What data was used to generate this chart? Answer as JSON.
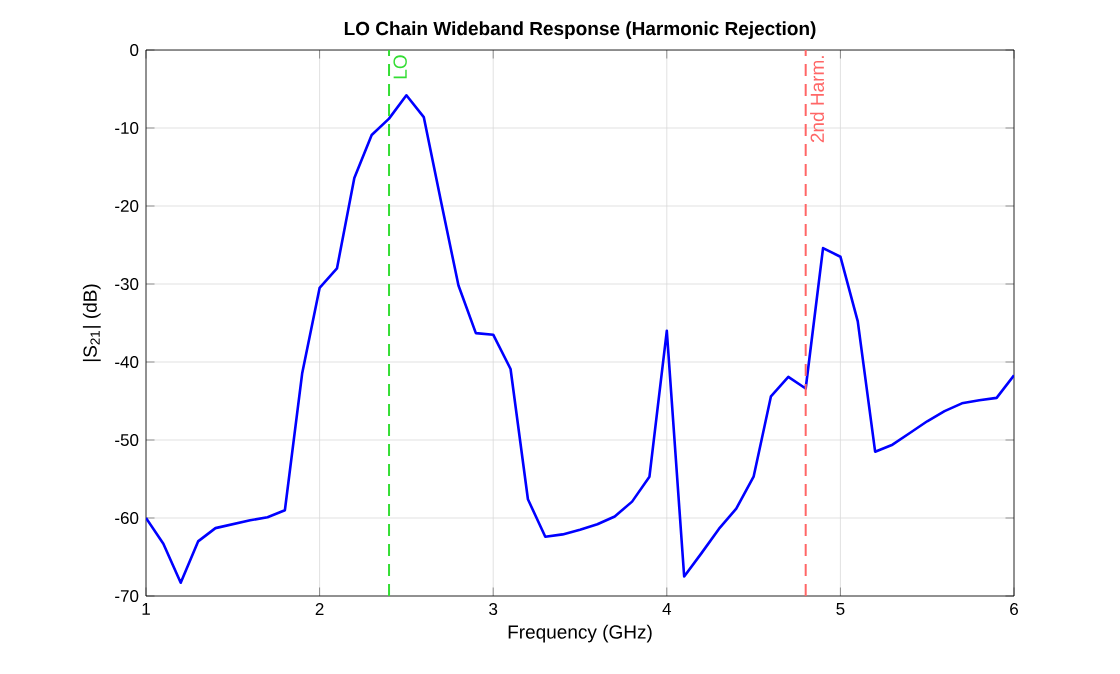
{
  "chart_data": {
    "type": "line",
    "title": "LO Chain Wideband Response (Harmonic Rejection)",
    "xlabel": "Frequency (GHz)",
    "ylabel": "|S$_{21}$| (dB)",
    "x": [
      1.0,
      1.1,
      1.2,
      1.3,
      1.4,
      1.5,
      1.6,
      1.7,
      1.8,
      1.9,
      2.0,
      2.1,
      2.2,
      2.3,
      2.4,
      2.5,
      2.6,
      2.7,
      2.8,
      2.9,
      3.0,
      3.1,
      3.2,
      3.3,
      3.4,
      3.5,
      3.6,
      3.7,
      3.8,
      3.9,
      4.0,
      4.1,
      4.2,
      4.3,
      4.4,
      4.5,
      4.6,
      4.7,
      4.8,
      4.9,
      5.0,
      5.1,
      5.2,
      5.3,
      5.4,
      5.5,
      5.6,
      5.7,
      5.8,
      5.9,
      6.0
    ],
    "series": [
      {
        "color": "#0000ff",
        "values": [
          -60,
          -63.3,
          -68.3,
          -63,
          -61.3,
          -60.8,
          -60.3,
          -59.9,
          -59,
          -41.4,
          -30.5,
          -28,
          -16.4,
          -10.9,
          -8.8,
          -5.8,
          -8.6,
          -19.5,
          -30.2,
          -36.3,
          -36.5,
          -40.9,
          -57.6,
          -62.4,
          -62.1,
          -61.5,
          -60.8,
          -59.8,
          -57.9,
          -54.7,
          -36,
          -67.5,
          -64.5,
          -61.4,
          -58.8,
          -54.7,
          -44.4,
          -41.9,
          -43.4,
          -25.4,
          -26.5,
          -34.8,
          -51.5,
          -50.6,
          -49.1,
          -47.6,
          -46.3,
          -45.3,
          -44.9,
          -44.6,
          -41.7
        ]
      }
    ],
    "xlim": [
      1,
      6
    ],
    "ylim": [
      -70,
      0
    ],
    "xticks": [
      1,
      2,
      3,
      4,
      5,
      6
    ],
    "yticks": [
      -70,
      -60,
      -50,
      -40,
      -30,
      -20,
      -10,
      0
    ],
    "grid": true,
    "marker": "none",
    "line_style": "solid",
    "ref_lines": [
      {
        "axis": "x",
        "value": 2.4,
        "label": "LO",
        "color": "#33dd33",
        "line_style": "dashed"
      },
      {
        "axis": "x",
        "value": 4.8,
        "label": "2nd Harm.",
        "color": "#ff6666",
        "line_style": "dashed"
      }
    ]
  }
}
